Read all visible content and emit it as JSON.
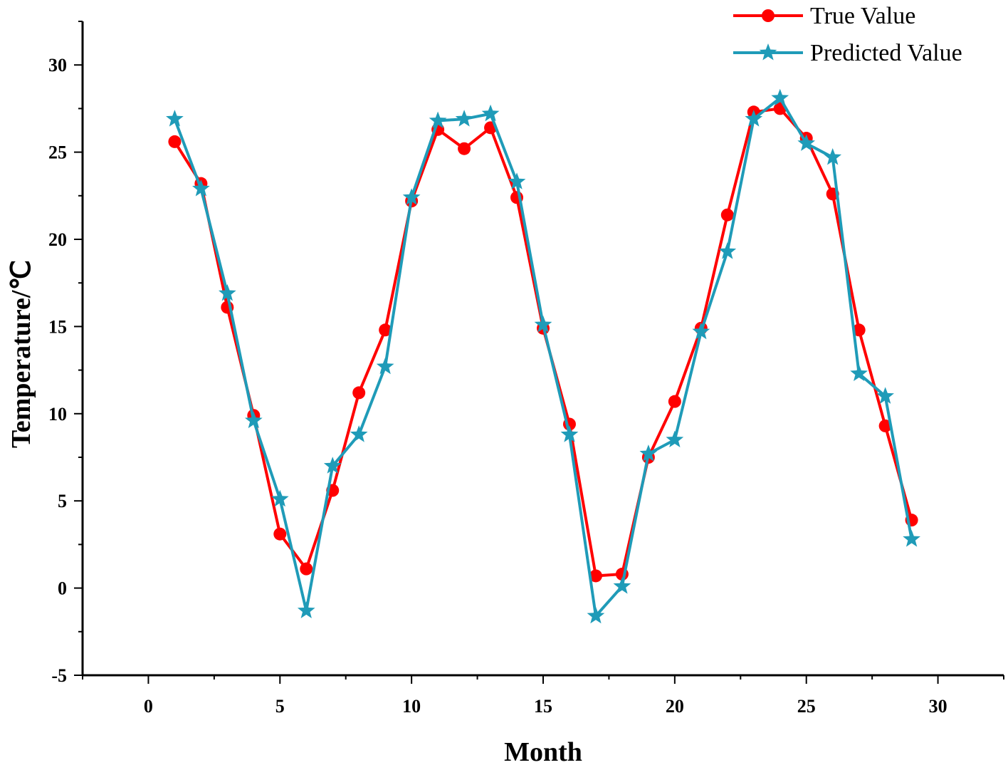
{
  "chart_data": {
    "type": "line",
    "title": "",
    "xlabel": "Month",
    "ylabel": "Temperature/℃",
    "xlim": [
      -2.5,
      32.5
    ],
    "ylim": [
      -5,
      32.5
    ],
    "x_ticks": [
      "0",
      "5",
      "10",
      "15",
      "20",
      "25",
      "30"
    ],
    "y_ticks": [
      "-5",
      "0",
      "5",
      "10",
      "15",
      "20",
      "25",
      "30"
    ],
    "grid": false,
    "legend_position": "top-right",
    "x": [
      1,
      2,
      3,
      4,
      5,
      6,
      7,
      8,
      9,
      10,
      11,
      12,
      13,
      14,
      15,
      16,
      17,
      18,
      19,
      20,
      21,
      22,
      23,
      24,
      25,
      26,
      27,
      28,
      29
    ],
    "series": [
      {
        "name": "True Value",
        "color": "#ff0000",
        "marker": "circle",
        "values": [
          25.6,
          23.2,
          16.1,
          9.9,
          3.1,
          1.1,
          5.6,
          11.2,
          14.8,
          22.2,
          26.3,
          25.2,
          26.4,
          22.4,
          14.9,
          9.4,
          0.7,
          0.8,
          7.5,
          10.7,
          14.9,
          21.4,
          27.3,
          27.5,
          25.8,
          22.6,
          14.8,
          9.3,
          3.9
        ]
      },
      {
        "name": "Predicted Value",
        "color": "#1f9bb8",
        "marker": "star",
        "values": [
          26.9,
          22.9,
          16.9,
          9.6,
          5.1,
          -1.3,
          7.0,
          8.8,
          12.7,
          22.4,
          26.8,
          26.9,
          27.2,
          23.3,
          15.1,
          8.8,
          -1.6,
          0.1,
          7.7,
          8.5,
          14.7,
          19.3,
          26.9,
          28.1,
          25.5,
          24.7,
          12.3,
          11.0,
          2.8
        ]
      }
    ]
  }
}
